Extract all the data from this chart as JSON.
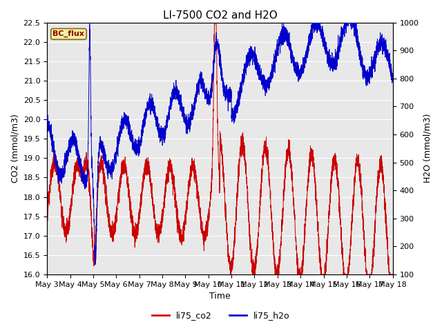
{
  "title": "LI-7500 CO2 and H2O",
  "xlabel": "Time",
  "ylabel_left": "CO2 (mmol/m3)",
  "ylabel_right": "H2O (mmol/m3)",
  "ylim_left": [
    16.0,
    22.5
  ],
  "ylim_right": [
    100,
    1000
  ],
  "color_co2": "#cc0000",
  "color_h2o": "#0000cc",
  "legend_labels": [
    "li75_co2",
    "li75_h2o"
  ],
  "annotation_text": "BC_flux",
  "background_color": "#e8e8e8",
  "grid_color": "#ffffff",
  "title_fontsize": 11,
  "label_fontsize": 9,
  "tick_fontsize": 8
}
